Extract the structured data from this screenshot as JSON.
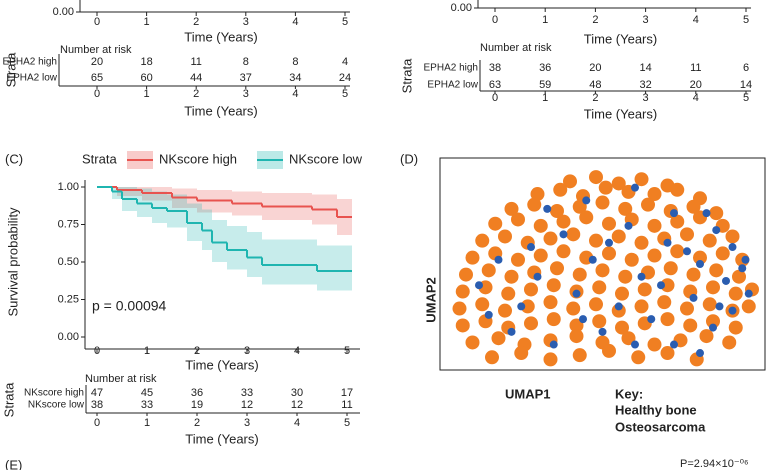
{
  "chart_data": [
    {
      "type": "km",
      "xticks": [
        0,
        1,
        2,
        3,
        4,
        5
      ],
      "xlim": [
        -0.2,
        5.1
      ],
      "xlabel": "Time (Years)",
      "ylim": [
        0,
        1
      ],
      "yticks": [
        {
          "value": 0,
          "label": "0.00"
        }
      ],
      "strata_label": "Strata",
      "risk_title": "Number at risk",
      "risk": [
        {
          "name": "EPHA2 high",
          "color": "#e8534f",
          "values": [
            20,
            18,
            11,
            8,
            8,
            4
          ]
        },
        {
          "name": "EPHA2 low",
          "color": "#1fb5b0",
          "values": [
            65,
            60,
            44,
            37,
            34,
            24
          ]
        }
      ],
      "series": []
    },
    {
      "type": "km",
      "xticks": [
        0,
        1,
        2,
        3,
        4,
        5
      ],
      "xlim": [
        -0.2,
        5.1
      ],
      "xlabel": "Time (Years)",
      "ylim": [
        0,
        1
      ],
      "yticks": [
        {
          "value": 0,
          "label": "0.00"
        }
      ],
      "strata_label": "Strata",
      "risk_title": "Number at risk",
      "risk": [
        {
          "name": "EPHA2 high",
          "color": "#e8534f",
          "values": [
            38,
            36,
            20,
            14,
            11,
            6
          ]
        },
        {
          "name": "EPHA2 low",
          "color": "#1fb5b0",
          "values": [
            63,
            59,
            48,
            32,
            20,
            14
          ]
        }
      ],
      "series": []
    },
    {
      "type": "km",
      "panel": "(C)",
      "legend_title": "Strata",
      "xticks": [
        0,
        1,
        2,
        3,
        4,
        5
      ],
      "xlim": [
        -0.24,
        5.26
      ],
      "xlabel": "Time (Years)",
      "ylim": [
        -0.04,
        1.047
      ],
      "ylabel": "Survival probability",
      "yticks": [
        {
          "value": 0,
          "label": "0.00"
        },
        {
          "value": 0.25,
          "label": "0.25"
        },
        {
          "value": 0.5,
          "label": "0.50"
        },
        {
          "value": 0.75,
          "label": "0.75"
        },
        {
          "value": 1,
          "label": "1.00"
        }
      ],
      "annotation": "p = 0.00094",
      "strata_label": "Strata",
      "risk_title": "Number at risk",
      "risk": [
        {
          "name": "NKscore high",
          "color": "#e8534f",
          "values": [
            47,
            45,
            36,
            33,
            30,
            17
          ]
        },
        {
          "name": "NKscore low",
          "color": "#1fb5b0",
          "values": [
            38,
            33,
            19,
            12,
            12,
            11
          ]
        }
      ],
      "series": [
        {
          "name": "NKscore high",
          "color": "#e8534f",
          "x": [
            0,
            0.4,
            0.9,
            1.5,
            2.0,
            2.7,
            3.3,
            4.3,
            4.8,
            5.1
          ],
          "values": [
            1,
            0.98,
            0.96,
            0.93,
            0.91,
            0.89,
            0.87,
            0.85,
            0.8,
            0.8
          ],
          "upper": [
            1,
            1,
            1,
            0.99,
            0.98,
            0.97,
            0.96,
            0.95,
            0.92,
            0.92
          ],
          "lower": [
            1,
            0.94,
            0.91,
            0.86,
            0.83,
            0.81,
            0.78,
            0.75,
            0.68,
            0.68
          ]
        },
        {
          "name": "NKscore low",
          "color": "#1fb5b0",
          "x": [
            0,
            0.3,
            0.5,
            0.8,
            1.1,
            1.4,
            1.8,
            2.1,
            2.3,
            2.6,
            3.0,
            3.3,
            4.4,
            5.1
          ],
          "values": [
            1,
            0.97,
            0.92,
            0.89,
            0.86,
            0.84,
            0.76,
            0.71,
            0.63,
            0.58,
            0.53,
            0.48,
            0.44,
            0.44
          ],
          "upper": [
            1,
            1,
            1,
            0.99,
            0.97,
            0.95,
            0.89,
            0.85,
            0.78,
            0.74,
            0.7,
            0.65,
            0.61,
            0.61
          ],
          "lower": [
            1,
            0.92,
            0.84,
            0.8,
            0.76,
            0.73,
            0.64,
            0.58,
            0.5,
            0.45,
            0.4,
            0.35,
            0.31,
            0.31
          ]
        }
      ]
    },
    {
      "type": "scatter",
      "panel": "(D)",
      "xlabel": "UMAP1",
      "ylabel": "UMAP2",
      "key_title": "Key:",
      "xlim": [
        0,
        100
      ],
      "ylim": [
        0,
        100
      ],
      "series": [
        {
          "name": "Osteosarcoma",
          "color": "#f07f22",
          "x": [
            40,
            48,
            55,
            62,
            70,
            30,
            37,
            44,
            51,
            58,
            66,
            73,
            80,
            22,
            29,
            36,
            43,
            50,
            57,
            64,
            71,
            78,
            85,
            17,
            24,
            31,
            38,
            45,
            52,
            59,
            66,
            73,
            80,
            87,
            13,
            20,
            27,
            34,
            41,
            48,
            55,
            62,
            69,
            76,
            83,
            90,
            10,
            17,
            24,
            31,
            38,
            45,
            52,
            59,
            66,
            73,
            80,
            87,
            93,
            8,
            15,
            22,
            29,
            36,
            43,
            50,
            57,
            64,
            71,
            78,
            85,
            92,
            7,
            14,
            21,
            28,
            35,
            42,
            49,
            56,
            63,
            70,
            77,
            84,
            91,
            96,
            6,
            13,
            20,
            27,
            34,
            41,
            48,
            55,
            62,
            69,
            76,
            83,
            90,
            95,
            7,
            14,
            21,
            28,
            35,
            42,
            49,
            56,
            63,
            70,
            77,
            84,
            91,
            10,
            18,
            26,
            34,
            42,
            50,
            58,
            66,
            74,
            82,
            89,
            16,
            25,
            34,
            43,
            52,
            61,
            70,
            79
          ],
          "values": [
            89,
            91,
            88,
            90,
            87,
            83,
            85,
            82,
            86,
            84,
            83,
            85,
            81,
            76,
            78,
            75,
            77,
            79,
            76,
            78,
            75,
            77,
            74,
            69,
            71,
            68,
            70,
            72,
            69,
            71,
            68,
            70,
            72,
            68,
            61,
            63,
            60,
            62,
            64,
            61,
            63,
            60,
            62,
            64,
            61,
            63,
            53,
            55,
            52,
            54,
            56,
            53,
            55,
            52,
            54,
            56,
            53,
            55,
            52,
            45,
            47,
            44,
            46,
            48,
            45,
            47,
            44,
            46,
            48,
            45,
            47,
            44,
            37,
            39,
            36,
            38,
            40,
            37,
            39,
            36,
            38,
            40,
            37,
            39,
            36,
            38,
            29,
            31,
            28,
            30,
            32,
            29,
            31,
            28,
            30,
            32,
            29,
            31,
            28,
            30,
            21,
            23,
            20,
            22,
            24,
            21,
            23,
            20,
            22,
            24,
            21,
            23,
            20,
            13,
            15,
            12,
            14,
            16,
            13,
            15,
            12,
            14,
            16,
            13,
            6,
            8,
            5,
            7,
            9,
            6,
            8,
            5
          ]
        },
        {
          "name": "Healthy bone",
          "color": "#2a5db0",
          "x": [
            45,
            60,
            72,
            85,
            90,
            93,
            88,
            95,
            90,
            84,
            78,
            80,
            70,
            62,
            55,
            47,
            38,
            30,
            25,
            18,
            12,
            22,
            35,
            50,
            65,
            72,
            80,
            58,
            42,
            33,
            68,
            76,
            86,
            94,
            52,
            28,
            15,
            60,
            44,
            82
          ],
          "values": [
            80,
            86,
            74,
            66,
            58,
            48,
            42,
            36,
            28,
            20,
            34,
            50,
            60,
            44,
            30,
            52,
            64,
            44,
            30,
            52,
            40,
            18,
            12,
            18,
            24,
            12,
            8,
            68,
            36,
            76,
            40,
            56,
            30,
            52,
            60,
            58,
            26,
            12,
            24,
            74
          ]
        }
      ]
    }
  ],
  "panel_e": {
    "label": "(E)",
    "p_value": "P=2.94×10⁻⁰⁶"
  }
}
